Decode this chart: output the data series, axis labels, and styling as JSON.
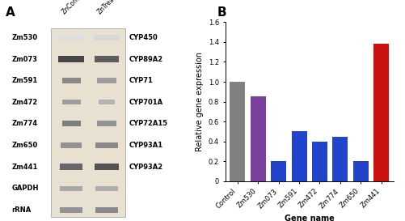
{
  "categories": [
    "Control",
    "Zm530",
    "Zm073",
    "Zm591",
    "Zm472",
    "Zm774",
    "Zm650",
    "Zm441"
  ],
  "values": [
    1.0,
    0.85,
    0.2,
    0.5,
    0.4,
    0.45,
    0.2,
    1.38
  ],
  "colors": [
    "#808080",
    "#7B3F9E",
    "#2244CC",
    "#2244CC",
    "#2244CC",
    "#2244CC",
    "#2244CC",
    "#CC1111"
  ],
  "ylabel": "Relative gene expression",
  "xlabel": "Gene name",
  "panel_label_A": "A",
  "panel_label_B": "B",
  "ylim": [
    0,
    1.6
  ],
  "yticks": [
    0.0,
    0.2,
    0.4,
    0.6,
    0.8,
    1.0,
    1.2,
    1.4,
    1.6
  ],
  "tick_fontsize": 6,
  "label_fontsize": 7,
  "panel_label_fontsize": 11,
  "background_color": "#ffffff",
  "gel_bg": "#e8e0d0",
  "gene_names": [
    "Zm530",
    "Zm073",
    "Zm591",
    "Zm472",
    "Zm774",
    "Zm650",
    "Zm441",
    "GAPDH",
    "rRNA"
  ],
  "cyp_names": [
    "CYP450",
    "CYP89A2",
    "CYP71",
    "CYP701A",
    "CYP72A15",
    "CYP93A1",
    "CYP93A2",
    "",
    ""
  ],
  "band1_intensity": [
    0.15,
    0.85,
    0.55,
    0.45,
    0.6,
    0.5,
    0.7,
    0.4,
    0.5
  ],
  "band2_intensity": [
    0.18,
    0.75,
    0.45,
    0.35,
    0.5,
    0.55,
    0.8,
    0.38,
    0.55
  ],
  "band1_width": [
    0.14,
    0.14,
    0.1,
    0.1,
    0.1,
    0.11,
    0.12,
    0.12,
    0.12
  ],
  "band2_width": [
    0.14,
    0.13,
    0.1,
    0.09,
    0.1,
    0.12,
    0.13,
    0.12,
    0.12
  ],
  "band_height": [
    0.028,
    0.03,
    0.025,
    0.022,
    0.025,
    0.025,
    0.028,
    0.022,
    0.025
  ]
}
